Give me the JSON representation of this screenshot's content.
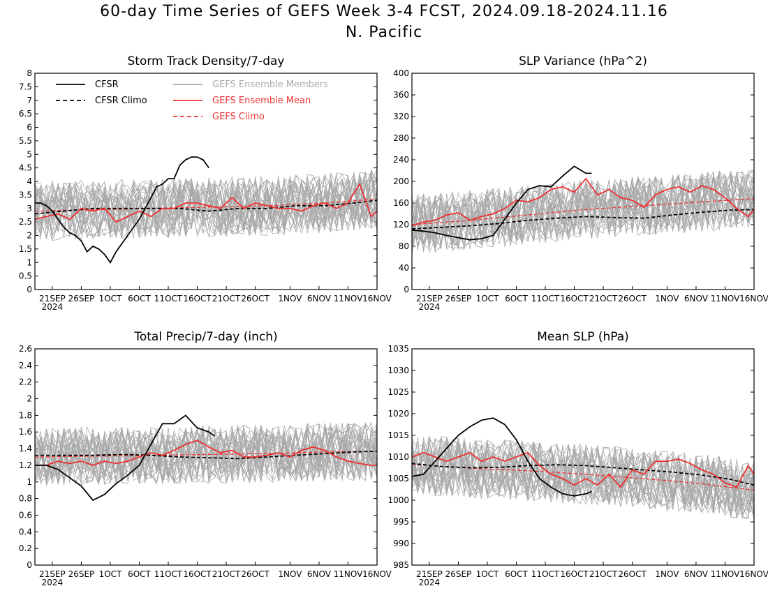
{
  "title_line1": "60-day Time Series of GEFS Week 3-4 FCST, 2024.09.18-2024.11.16",
  "title_line2": "N. Pacific",
  "colors": {
    "cfsr": "#000000",
    "members": "#a8a8a8",
    "gefs_mean": "#ee3030",
    "frame": "#000000"
  },
  "legend": {
    "cfsr": "CFSR",
    "cfsr_climo": "CFSR Climo",
    "members": "GEFS Ensemble Members",
    "gefs_mean": "GEFS Ensemble Mean",
    "gefs_climo": "GEFS Climo"
  },
  "chart_data": [
    {
      "type": "line",
      "title": "Storm Track Density/7-day",
      "ylim": [
        0,
        8
      ],
      "yticks": [
        "0",
        "0.5",
        "1",
        "1.5",
        "2",
        "2.5",
        "3",
        "3.5",
        "4",
        "4.5",
        "5",
        "5.5",
        "6",
        "6.5",
        "7",
        "7.5",
        "8"
      ],
      "xlim": [
        0,
        59
      ],
      "xticks": [
        {
          "d": 3,
          "label": "21SEP"
        },
        {
          "d": 8,
          "label": "26SEP"
        },
        {
          "d": 13,
          "label": "1OCT"
        },
        {
          "d": 18,
          "label": "6OCT"
        },
        {
          "d": 23,
          "label": "11OCT"
        },
        {
          "d": 28,
          "label": "16OCT"
        },
        {
          "d": 33,
          "label": "21OCT"
        },
        {
          "d": 38,
          "label": "26OCT"
        },
        {
          "d": 44,
          "label": "1NOV"
        },
        {
          "d": 49,
          "label": "6NOV"
        },
        {
          "d": 54,
          "label": "11NOV"
        },
        {
          "d": 59,
          "label": "16NOV"
        }
      ],
      "year_label": "2024",
      "cfsr": {
        "x": [
          0,
          1,
          2,
          3,
          4,
          5,
          6,
          7,
          8,
          9,
          10,
          11,
          12,
          13,
          14,
          15,
          16,
          17,
          18,
          19,
          20,
          21,
          22,
          23,
          24,
          25,
          26,
          27,
          28,
          29,
          30
        ],
        "y": [
          3.2,
          3.2,
          3.1,
          2.9,
          2.6,
          2.3,
          2.1,
          2.0,
          1.8,
          1.4,
          1.6,
          1.5,
          1.3,
          1.0,
          1.4,
          1.7,
          2.0,
          2.3,
          2.6,
          3.0,
          3.4,
          3.8,
          3.9,
          4.1,
          4.1,
          4.6,
          4.8,
          4.9,
          4.9,
          4.8,
          4.5
        ]
      },
      "cfsr_climo": {
        "x": [
          0,
          5,
          10,
          15,
          20,
          25,
          30,
          35,
          40,
          45,
          50,
          55,
          59
        ],
        "y": [
          2.8,
          2.9,
          3.0,
          3.0,
          3.0,
          3.0,
          2.9,
          3.0,
          3.0,
          3.1,
          3.1,
          3.2,
          3.3
        ]
      },
      "gefs_mean": {
        "x": [
          0,
          2,
          4,
          6,
          8,
          10,
          12,
          14,
          16,
          18,
          20,
          22,
          24,
          26,
          28,
          30,
          32,
          34,
          36,
          38,
          40,
          42,
          44,
          46,
          48,
          50,
          52,
          54,
          56,
          58,
          59
        ],
        "y": [
          2.6,
          2.7,
          2.8,
          2.6,
          3.0,
          2.9,
          3.0,
          2.5,
          2.7,
          2.9,
          2.7,
          3.0,
          3.0,
          3.2,
          3.2,
          3.1,
          3.0,
          3.4,
          3.0,
          3.2,
          3.1,
          3.0,
          3.0,
          2.9,
          3.1,
          3.2,
          3.0,
          3.2,
          3.9,
          2.7,
          2.9
        ]
      },
      "gefs_climo": {
        "x": [
          0,
          10,
          20,
          30,
          40,
          50,
          59
        ],
        "y": [
          2.9,
          2.95,
          3.0,
          3.05,
          3.1,
          3.2,
          3.35
        ]
      },
      "members_center": 3.0,
      "members_spread": 1.1
    },
    {
      "type": "line",
      "title": "SLP Variance (hPa^2)",
      "ylim": [
        0,
        400
      ],
      "yticks": [
        "0",
        "40",
        "80",
        "120",
        "160",
        "200",
        "240",
        "280",
        "320",
        "360",
        "400"
      ],
      "xlim": [
        0,
        59
      ],
      "xticks": [
        {
          "d": 3,
          "label": "21SEP"
        },
        {
          "d": 8,
          "label": "26SEP"
        },
        {
          "d": 13,
          "label": "1OCT"
        },
        {
          "d": 18,
          "label": "6OCT"
        },
        {
          "d": 23,
          "label": "11OCT"
        },
        {
          "d": 28,
          "label": "16OCT"
        },
        {
          "d": 33,
          "label": "21OCT"
        },
        {
          "d": 38,
          "label": "26OCT"
        },
        {
          "d": 44,
          "label": "1NOV"
        },
        {
          "d": 49,
          "label": "6NOV"
        },
        {
          "d": 54,
          "label": "11NOV"
        },
        {
          "d": 59,
          "label": "16NOV"
        }
      ],
      "year_label": "2024",
      "cfsr": {
        "x": [
          0,
          2,
          4,
          6,
          8,
          10,
          12,
          14,
          16,
          18,
          20,
          22,
          24,
          26,
          28,
          30,
          31
        ],
        "y": [
          110,
          108,
          105,
          100,
          96,
          92,
          94,
          100,
          130,
          160,
          185,
          192,
          190,
          210,
          228,
          215,
          215
        ]
      },
      "cfsr_climo": {
        "x": [
          0,
          5,
          10,
          15,
          20,
          25,
          30,
          35,
          40,
          45,
          50,
          55,
          59
        ],
        "y": [
          112,
          115,
          118,
          122,
          128,
          132,
          135,
          133,
          132,
          138,
          143,
          147,
          148
        ]
      },
      "gefs_mean": {
        "x": [
          0,
          2,
          4,
          6,
          8,
          10,
          12,
          14,
          16,
          18,
          20,
          22,
          24,
          26,
          28,
          30,
          32,
          34,
          36,
          38,
          40,
          42,
          44,
          46,
          48,
          50,
          52,
          54,
          56,
          58,
          59
        ],
        "y": [
          118,
          125,
          128,
          138,
          142,
          128,
          135,
          140,
          150,
          165,
          162,
          170,
          185,
          190,
          180,
          205,
          175,
          185,
          170,
          165,
          152,
          175,
          185,
          190,
          180,
          192,
          185,
          170,
          150,
          135,
          148
        ]
      },
      "gefs_climo": {
        "x": [
          0,
          10,
          20,
          30,
          40,
          50,
          59
        ],
        "y": [
          120,
          128,
          138,
          148,
          155,
          162,
          168
        ]
      },
      "members_center": 150,
      "members_spread": 55
    },
    {
      "type": "line",
      "title": "Total Precip/7-day (inch)",
      "ylim": [
        0,
        2.6
      ],
      "yticks": [
        "0",
        "0.2",
        "0.4",
        "0.6",
        "0.8",
        "1",
        "1.2",
        "1.4",
        "1.6",
        "1.8",
        "2",
        "2.2",
        "2.4",
        "2.6"
      ],
      "xlim": [
        0,
        59
      ],
      "xticks": [
        {
          "d": 3,
          "label": "21SEP"
        },
        {
          "d": 8,
          "label": "26SEP"
        },
        {
          "d": 13,
          "label": "1OCT"
        },
        {
          "d": 18,
          "label": "6OCT"
        },
        {
          "d": 23,
          "label": "11OCT"
        },
        {
          "d": 28,
          "label": "16OCT"
        },
        {
          "d": 33,
          "label": "21OCT"
        },
        {
          "d": 38,
          "label": "26OCT"
        },
        {
          "d": 44,
          "label": "1NOV"
        },
        {
          "d": 49,
          "label": "6NOV"
        },
        {
          "d": 54,
          "label": "11NOV"
        },
        {
          "d": 59,
          "label": "16NOV"
        }
      ],
      "year_label": "2024",
      "cfsr": {
        "x": [
          0,
          2,
          4,
          6,
          8,
          10,
          12,
          14,
          16,
          18,
          20,
          22,
          24,
          26,
          28,
          30,
          31
        ],
        "y": [
          1.2,
          1.2,
          1.15,
          1.05,
          0.95,
          0.78,
          0.85,
          0.98,
          1.08,
          1.2,
          1.45,
          1.7,
          1.7,
          1.8,
          1.65,
          1.6,
          1.55
        ]
      },
      "cfsr_climo": {
        "x": [
          0,
          5,
          10,
          15,
          20,
          25,
          30,
          35,
          40,
          45,
          50,
          55,
          59
        ],
        "y": [
          1.32,
          1.32,
          1.32,
          1.33,
          1.32,
          1.3,
          1.29,
          1.28,
          1.3,
          1.32,
          1.34,
          1.36,
          1.37
        ]
      },
      "gefs_mean": {
        "x": [
          0,
          2,
          4,
          6,
          8,
          10,
          12,
          14,
          16,
          18,
          20,
          22,
          24,
          26,
          28,
          30,
          32,
          34,
          36,
          38,
          40,
          42,
          44,
          46,
          48,
          50,
          52,
          54,
          56,
          58,
          59
        ],
        "y": [
          1.2,
          1.2,
          1.25,
          1.22,
          1.25,
          1.2,
          1.25,
          1.22,
          1.25,
          1.3,
          1.35,
          1.32,
          1.38,
          1.45,
          1.5,
          1.42,
          1.35,
          1.38,
          1.3,
          1.3,
          1.32,
          1.35,
          1.3,
          1.38,
          1.42,
          1.38,
          1.3,
          1.25,
          1.22,
          1.2,
          1.2
        ]
      },
      "gefs_climo": {
        "x": [
          0,
          10,
          20,
          30,
          40,
          50,
          59
        ],
        "y": [
          1.3,
          1.31,
          1.32,
          1.33,
          1.34,
          1.36,
          1.37
        ]
      },
      "members_center": 1.3,
      "members_spread": 0.35
    },
    {
      "type": "line",
      "title": "Mean SLP (hPa)",
      "ylim": [
        985,
        1035
      ],
      "yticks": [
        "985",
        "990",
        "995",
        "1000",
        "1005",
        "1010",
        "1015",
        "1020",
        "1025",
        "1030",
        "1035"
      ],
      "xlim": [
        0,
        59
      ],
      "xticks": [
        {
          "d": 3,
          "label": "21SEP"
        },
        {
          "d": 8,
          "label": "26SEP"
        },
        {
          "d": 13,
          "label": "1OCT"
        },
        {
          "d": 18,
          "label": "6OCT"
        },
        {
          "d": 23,
          "label": "11OCT"
        },
        {
          "d": 28,
          "label": "16OCT"
        },
        {
          "d": 33,
          "label": "21OCT"
        },
        {
          "d": 38,
          "label": "26OCT"
        },
        {
          "d": 44,
          "label": "1NOV"
        },
        {
          "d": 49,
          "label": "6NOV"
        },
        {
          "d": 54,
          "label": "11NOV"
        },
        {
          "d": 59,
          "label": "16NOV"
        }
      ],
      "year_label": "2024",
      "cfsr": {
        "x": [
          0,
          2,
          4,
          6,
          8,
          10,
          12,
          14,
          16,
          18,
          20,
          22,
          24,
          26,
          28,
          30,
          31
        ],
        "y": [
          1005.5,
          1006,
          1009,
          1012,
          1015,
          1017,
          1018.5,
          1019,
          1017.5,
          1014,
          1009,
          1005,
          1003,
          1001.5,
          1001,
          1001.5,
          1002
        ]
      },
      "cfsr_climo": {
        "x": [
          0,
          5,
          10,
          15,
          20,
          25,
          30,
          35,
          40,
          45,
          50,
          55,
          59
        ],
        "y": [
          1008.5,
          1007.8,
          1007.5,
          1007.6,
          1008,
          1008.2,
          1008,
          1007.5,
          1007,
          1006.5,
          1005.8,
          1004.8,
          1003.5
        ]
      },
      "gefs_mean": {
        "x": [
          0,
          2,
          4,
          6,
          8,
          10,
          12,
          14,
          16,
          18,
          20,
          22,
          24,
          26,
          28,
          30,
          32,
          34,
          36,
          38,
          40,
          42,
          44,
          46,
          48,
          50,
          52,
          54,
          56,
          58,
          59
        ],
        "y": [
          1010,
          1011,
          1010,
          1009,
          1010,
          1011,
          1009,
          1010,
          1009,
          1010,
          1011,
          1008,
          1006,
          1005,
          1003.5,
          1005,
          1003.5,
          1006,
          1003,
          1007,
          1006,
          1009,
          1009,
          1009.5,
          1008.5,
          1007,
          1006,
          1004,
          1003,
          1008,
          1006
        ]
      },
      "gefs_climo": {
        "x": [
          0,
          10,
          20,
          30,
          40,
          50,
          59
        ],
        "y": [
          1008.3,
          1007.4,
          1006.8,
          1006,
          1005,
          1003.8,
          1002.3
        ]
      },
      "members_center": 1007,
      "members_spread": 7
    }
  ]
}
